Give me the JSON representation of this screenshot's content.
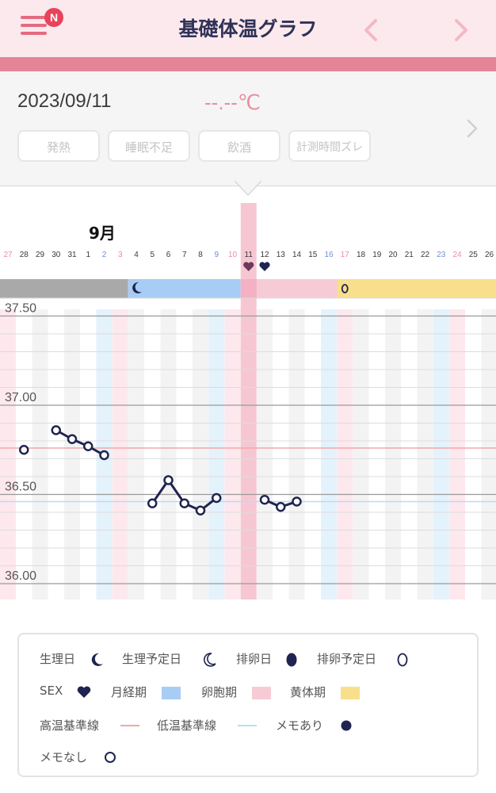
{
  "header": {
    "title": "基礎体温グラフ",
    "badge": "N",
    "icons": [
      "menu-icon",
      "chevron-left-icon",
      "chevron-right-icon"
    ]
  },
  "panel": {
    "date": "2023/09/11",
    "temperature": "--.--℃",
    "tags": [
      "発熱",
      "睡眠不足",
      "飲酒",
      "計測時間ズレ"
    ]
  },
  "chart_data": {
    "type": "line",
    "month_label": "9月",
    "x": [
      "27",
      "28",
      "29",
      "30",
      "31",
      "1",
      "2",
      "3",
      "4",
      "5",
      "6",
      "7",
      "8",
      "9",
      "10",
      "11",
      "12",
      "13",
      "14",
      "15",
      "16",
      "17",
      "18",
      "19",
      "20",
      "21",
      "22",
      "23",
      "24",
      "25",
      "26"
    ],
    "y_tick_labels": [
      "37.50",
      "37.00",
      "36.50",
      "36.00"
    ],
    "ylim": [
      35.9,
      37.65
    ],
    "high_baseline": 36.76,
    "low_baseline": 36.46,
    "series": [
      {
        "values": [
          null,
          36.75,
          null,
          36.86,
          36.81,
          36.77,
          36.72,
          null,
          null,
          36.45,
          36.58,
          36.45,
          36.41,
          36.48,
          null,
          null,
          36.47,
          36.43,
          36.46,
          null,
          null,
          null,
          null,
          null,
          null,
          null,
          null,
          null,
          null,
          null,
          null
        ]
      }
    ],
    "red_day_labels": [
      "27",
      "3",
      "10",
      "17",
      "24"
    ],
    "blue_day_labels": [
      "2",
      "9",
      "16",
      "23"
    ],
    "selected_day": "11",
    "sex_days": [
      "11",
      "12"
    ],
    "period_bar": [
      {
        "phase": "past",
        "from": "27",
        "to": "3"
      },
      {
        "phase": "menstrual",
        "from": "4",
        "to": "10"
      },
      {
        "phase": "follicular",
        "from": "11",
        "to": "17"
      },
      {
        "phase": "luteal",
        "from": "17",
        "to": "26"
      }
    ],
    "period_start_icon": "crescent-moon-icon",
    "ovulation_forecast_icon": "ovulation-forecast-icon",
    "grid": true
  },
  "legend": {
    "period_day": "生理日",
    "period_forecast": "生理予定日",
    "ovulation_day": "排卵日",
    "ovulation_forecast": "排卵予定日",
    "sex": "SEX",
    "menstrual_phase": "月経期",
    "follicular_phase": "卵胞期",
    "luteal_phase": "黄体期",
    "high_baseline": "高温基準線",
    "low_baseline": "低温基準線",
    "with_memo": "メモあり",
    "without_memo": "メモなし"
  },
  "colors": {
    "header_bg": "#fbe9ee",
    "header_strip": "#e58497",
    "title": "#2f3256",
    "navy": "#1f2450",
    "menstrual": "#a8cdf4",
    "follicular": "#f6cbd5",
    "luteal": "#f7df8c",
    "past_bar": "#a9a9a9",
    "red_day": "#f08aa0",
    "blue_day": "#6f8fd6",
    "high_line": "#f1a8a8",
    "low_line": "#b9dcf4"
  }
}
